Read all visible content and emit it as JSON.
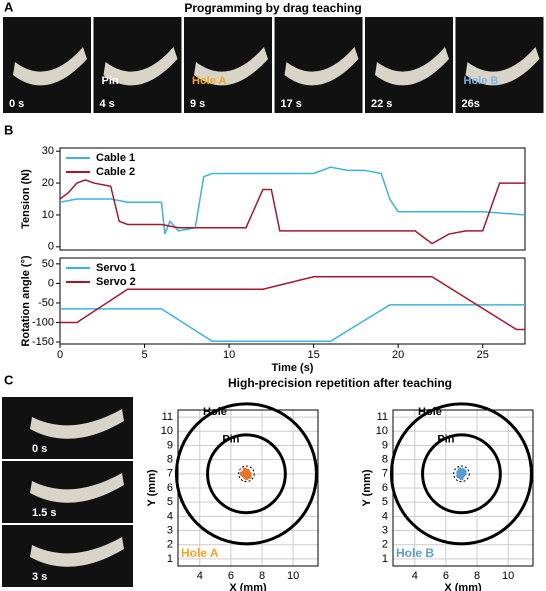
{
  "panel_labels": [
    "A",
    "B",
    "C"
  ],
  "panel_a": {
    "title": "Programming by drag teaching",
    "frames": [
      {
        "time": "0 s"
      },
      {
        "time": "4 s",
        "note": "Pin",
        "note_color": "#ffffff"
      },
      {
        "time": "9 s",
        "note": "Hole A",
        "note_color": "#f5a623"
      },
      {
        "time": "17 s"
      },
      {
        "time": "22 s"
      },
      {
        "time": "26s",
        "note": "Hole B",
        "note_color": "#7fb2e5"
      }
    ]
  },
  "panel_c": {
    "title": "High-precision repetition after teaching",
    "frames": [
      "0 s",
      "1.5 s",
      "3 s"
    ]
  },
  "chart_data": [
    {
      "type": "line",
      "ylabel": "Tension (N)",
      "xlim": [
        0,
        27.5
      ],
      "ylim": [
        -1,
        31
      ],
      "yticks": [
        0,
        10,
        20,
        30
      ],
      "legend": "top-left",
      "series": [
        {
          "name": "Cable 1",
          "color": "#3bb3e0",
          "x": [
            0,
            1,
            3,
            4,
            6,
            6.2,
            6.5,
            7,
            8,
            8.5,
            9,
            12,
            15,
            16,
            17,
            18,
            19,
            19.5,
            20,
            22,
            25,
            27.5
          ],
          "values": [
            14,
            15,
            15,
            14,
            14,
            4,
            8,
            5,
            6,
            22,
            23,
            23,
            23,
            25,
            24,
            24,
            23,
            15,
            11,
            11,
            11,
            10
          ]
        },
        {
          "name": "Cable 2",
          "color": "#a3192b",
          "x": [
            0,
            0.5,
            1,
            1.5,
            2,
            3,
            3.5,
            4,
            6,
            7,
            8,
            10,
            11,
            12,
            12.5,
            13,
            15,
            18,
            20,
            21,
            22,
            23,
            24,
            25,
            26,
            27.5
          ],
          "values": [
            15,
            17,
            20,
            21,
            20,
            19,
            8,
            7,
            7,
            6,
            6,
            6,
            6,
            18,
            18,
            5,
            5,
            5,
            5,
            5,
            1,
            4,
            5,
            5,
            20,
            20
          ]
        }
      ]
    },
    {
      "type": "line",
      "ylabel": "Rotation angle (°)",
      "xlabel": "Time (s)",
      "xlim": [
        0,
        27.5
      ],
      "xticks": [
        0,
        5,
        10,
        15,
        20,
        25
      ],
      "ylim": [
        -155,
        65
      ],
      "yticks": [
        -150,
        -100,
        -50,
        0,
        50
      ],
      "legend": "top-left",
      "series": [
        {
          "name": "Servo 1",
          "color": "#3bb3e0",
          "x": [
            0,
            6,
            9,
            16,
            19.5,
            27.5
          ],
          "values": [
            -65,
            -65,
            -148,
            -148,
            -55,
            -55
          ]
        },
        {
          "name": "Servo 2",
          "color": "#a3192b",
          "x": [
            0,
            1,
            4,
            12,
            15,
            22,
            27,
            27.5
          ],
          "values": [
            -100,
            -100,
            -15,
            -15,
            17,
            17,
            -118,
            -118
          ]
        }
      ]
    },
    {
      "type": "target",
      "xlabel": "X (mm)",
      "ylabel": "Y (mm)",
      "xlim": [
        2.6,
        11.6
      ],
      "ylim": [
        0.5,
        11.5
      ],
      "xticks": [
        4,
        6,
        8,
        10
      ],
      "yticks": [
        1,
        2,
        3,
        4,
        5,
        6,
        7,
        8,
        9,
        10,
        11
      ],
      "grid": true,
      "center": [
        7,
        7
      ],
      "circles": [
        {
          "label": "Hole",
          "r": 4.5
        },
        {
          "label": "Pin",
          "r": 2.5
        },
        {
          "r": 0.5
        }
      ],
      "corner_label": "Hole A",
      "corner_color": "#f5a623",
      "points": {
        "color": "#e8772e",
        "x": [
          6.8,
          7.0,
          7.1,
          6.9,
          7.2,
          6.7,
          7.0,
          6.9,
          7.1,
          6.8,
          7.2,
          7.0
        ],
        "y": [
          7.1,
          7.2,
          6.9,
          6.8,
          7.0,
          7.0,
          6.7,
          7.3,
          7.2,
          6.9,
          6.8,
          7.05
        ]
      }
    },
    {
      "type": "target",
      "xlabel": "X (mm)",
      "ylabel": "Y (mm)",
      "xlim": [
        2.6,
        11.6
      ],
      "ylim": [
        0.5,
        11.5
      ],
      "xticks": [
        4,
        6,
        8,
        10
      ],
      "yticks": [
        1,
        2,
        3,
        4,
        5,
        6,
        7,
        8,
        9,
        10,
        11
      ],
      "grid": true,
      "center": [
        7,
        7
      ],
      "circles": [
        {
          "label": "Hole",
          "r": 4.5
        },
        {
          "label": "Pin",
          "r": 2.5
        },
        {
          "r": 0.5
        }
      ],
      "corner_label": "Hole B",
      "corner_color": "#5b9bd5",
      "points": {
        "color": "#5b9bd5",
        "x": [
          6.9,
          7.0,
          7.1,
          6.8,
          7.2,
          6.9,
          7.0,
          7.1,
          6.8,
          7.0,
          7.2,
          6.9
        ],
        "y": [
          7.0,
          7.2,
          6.9,
          7.1,
          7.0,
          6.8,
          6.7,
          7.25,
          6.85,
          7.05,
          7.15,
          7.3
        ]
      }
    }
  ]
}
